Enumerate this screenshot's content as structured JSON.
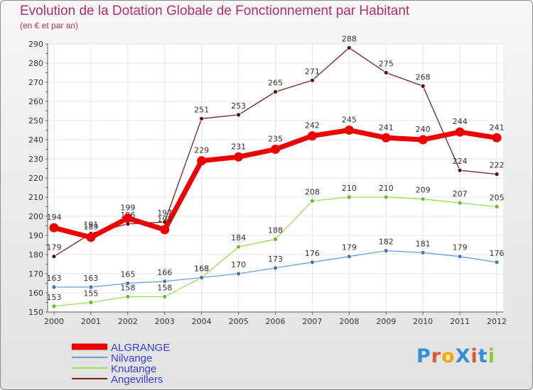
{
  "chart_data": {
    "type": "line",
    "title": "Evolution de la Dotation Globale de Fonctionnement par Habitant",
    "subtitle": "(en € et par an)",
    "xlabel": "",
    "ylabel": "",
    "categories": [
      "2000",
      "2001",
      "2002",
      "2003",
      "2004",
      "2005",
      "2006",
      "2007",
      "2008",
      "2009",
      "2010",
      "2011",
      "2012"
    ],
    "ylim": [
      150,
      290
    ],
    "yticks": [
      150,
      160,
      170,
      180,
      190,
      200,
      210,
      220,
      230,
      240,
      250,
      260,
      270,
      280,
      290
    ],
    "grid": true,
    "legend_position": "bottom-left",
    "series": [
      {
        "name": "Angevillers",
        "color": "#7a1f1f",
        "values": [
          179,
          191,
          196,
          197,
          251,
          253,
          265,
          271,
          288,
          275,
          268,
          224,
          222
        ]
      },
      {
        "name": "Knutange",
        "color": "#99dd55",
        "values": [
          153,
          155,
          158,
          158,
          168,
          184,
          188,
          208,
          210,
          210,
          209,
          207,
          205
        ]
      },
      {
        "name": "Nilvange",
        "color": "#6a9fd6",
        "values": [
          163,
          163,
          165,
          166,
          168,
          170,
          173,
          176,
          179,
          182,
          181,
          179,
          176
        ]
      },
      {
        "name": "ALGRANGE",
        "color": "#ee0000",
        "values": [
          194,
          189,
          199,
          193,
          229,
          231,
          235,
          242,
          245,
          241,
          240,
          244,
          241
        ]
      }
    ],
    "legend_order": [
      "ALGRANGE",
      "Nilvange",
      "Knutange",
      "Angevillers"
    ]
  },
  "logo": {
    "text": "ProXiti",
    "colors": [
      "#2f8fd8",
      "#e6532c",
      "#f2a900",
      "#2f8fd8",
      "#e6532c",
      "#2f8fd8",
      "#8fc73e"
    ]
  }
}
